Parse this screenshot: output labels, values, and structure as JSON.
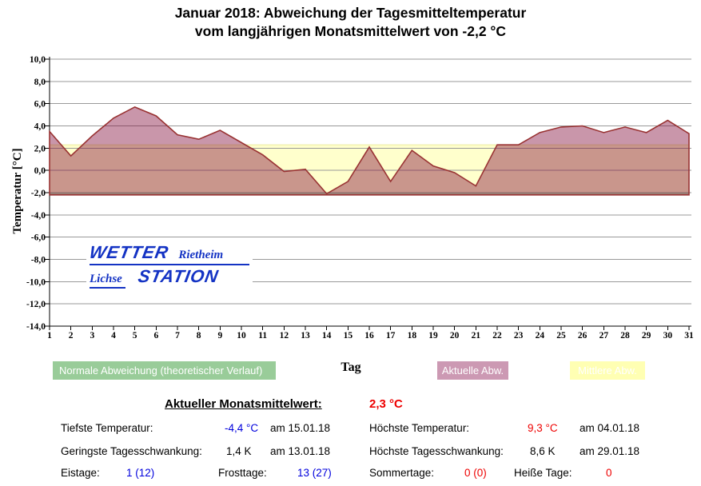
{
  "title": {
    "line1": "Januar 2018: Abweichung der Tagesmitteltemperatur",
    "line2": "vom langjährigen Monatsmittelwert von -2,2 °C"
  },
  "chart_data": {
    "type": "area",
    "xlabel": "Tag",
    "ylabel": "Temperatur [°C]",
    "ylim": [
      -14,
      10
    ],
    "ytick_step": 2,
    "grid": true,
    "x": [
      1,
      2,
      3,
      4,
      5,
      6,
      7,
      8,
      9,
      10,
      11,
      12,
      13,
      14,
      15,
      16,
      17,
      18,
      19,
      20,
      21,
      22,
      23,
      24,
      25,
      26,
      27,
      28,
      29,
      30,
      31
    ],
    "series": [
      {
        "name": "Aktuelle Abw.",
        "values": [
          3.5,
          1.3,
          3.1,
          4.7,
          5.7,
          4.9,
          3.2,
          2.8,
          3.6,
          2.5,
          1.4,
          -0.1,
          0.1,
          -2.1,
          -1.0,
          2.1,
          -1.0,
          1.8,
          0.4,
          -0.2,
          -1.4,
          2.3,
          2.3,
          3.4,
          3.9,
          4.0,
          3.4,
          3.9,
          3.4,
          4.5,
          3.3
        ],
        "baseline": -2.2,
        "fill": "rgba(126,5,53,0.42)",
        "line_color": "#993333"
      },
      {
        "name": "Mittlere Abw.",
        "band_from": -2.2,
        "band_to": 2.3,
        "fill": "#ffffcc",
        "edge_color": "#ebeba0"
      },
      {
        "name": "Normale Abweichung (theoretischer Verlauf)",
        "constant_value": -2.05,
        "line_color": "#99cc99"
      }
    ],
    "colors": {
      "grid": "#999999",
      "axis": "#000000"
    }
  },
  "legend": {
    "items": [
      {
        "label": "Normale Abweichung (theoretischer Verlauf)",
        "color": "#99cc99"
      },
      {
        "label": "Aktuelle Abw.",
        "color": "#cc99b3"
      },
      {
        "label": "Mittlere Abw.",
        "color": "#ffffb3"
      }
    ]
  },
  "watermark": {
    "word1": "WETTER",
    "word2": "Rietheim",
    "word3": "Lichse",
    "word4": "STATION"
  },
  "stats": {
    "header": {
      "label": "Aktueller Monatsmittelwert:",
      "value": "2,3 °C",
      "value_color": "#ee0000"
    },
    "row1": {
      "label_left": "Tiefste Temperatur:",
      "value_left": "-4,4 °C",
      "value_left_color": "#0000dd",
      "date_left": "am 15.01.18",
      "label_right": "Höchste Temperatur:",
      "value_right": "9,3 °C",
      "value_right_color": "#ee0000",
      "date_right": "am 04.01.18"
    },
    "row2": {
      "label_left": "Geringste Tagesschwankung:",
      "value_left": "1,4 K",
      "date_left": "am 13.01.18",
      "label_right": "Höchste Tagesschwankung:",
      "value_right": "8,6 K",
      "date_right": "am 29.01.18"
    },
    "counts": [
      {
        "label": "Eistage:",
        "value": "1 (12)",
        "color": "#0000dd"
      },
      {
        "label": "Frosttage:",
        "value": "13 (27)",
        "color": "#0000dd"
      },
      {
        "label": "Sommertage:",
        "value": "0 (0)",
        "color": "#ee0000"
      },
      {
        "label": "Heiße Tage:",
        "value": "0",
        "color": "#ee0000"
      }
    ]
  }
}
